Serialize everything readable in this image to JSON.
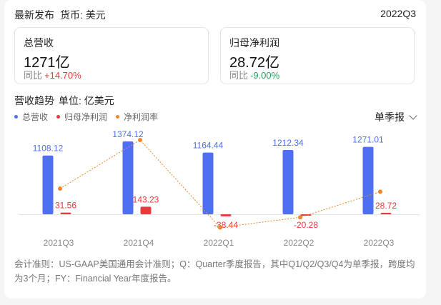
{
  "header": {
    "title": "最新发布",
    "currency": "货币: 美元",
    "period": "2022Q3"
  },
  "metrics": [
    {
      "label": "总营收",
      "value": "1271亿",
      "yoy_label": "同比",
      "yoy_value": "+14.70%"
    },
    {
      "label": "归母净利润",
      "value": "28.72亿",
      "yoy_label": "同比",
      "yoy_value": "-9.00%"
    }
  ],
  "section": {
    "title": "营收趋势",
    "unit": "单位: 亿美元"
  },
  "mode_selector": {
    "label": "单季报"
  },
  "colors": {
    "revenue": "#4f6ff2",
    "profit": "#e83a3a",
    "margin": "#f0862e"
  },
  "chart_data": {
    "type": "bar",
    "categories": [
      "2021Q3",
      "2021Q4",
      "2022Q1",
      "2022Q2",
      "2022Q3"
    ],
    "series": [
      {
        "name": "总营收",
        "type": "bar",
        "values": [
          1108.12,
          1374.12,
          1164.44,
          1212.34,
          1271.01
        ],
        "labels": [
          "1108.12",
          "1374.12",
          "1164.44",
          "1212.34",
          "1271.01"
        ]
      },
      {
        "name": "归母净利润",
        "type": "bar",
        "values": [
          31.56,
          143.23,
          -38.44,
          -20.28,
          28.72
        ],
        "labels": [
          "31.56",
          "143.23",
          "-38.44",
          "-20.28",
          "28.72"
        ]
      },
      {
        "name": "净利润率",
        "type": "line",
        "values": [
          2.8,
          10.4,
          -3.3,
          -1.7,
          2.3
        ]
      }
    ],
    "legend": "top-left",
    "grid": false
  },
  "footnote": "会计准则：US-GAAP美国通用会计准则；Q：Quarter季度报告，其中Q1/Q2/Q3/Q4为单季报，跨度均为3个月；FY：Financial Year年度报告。"
}
